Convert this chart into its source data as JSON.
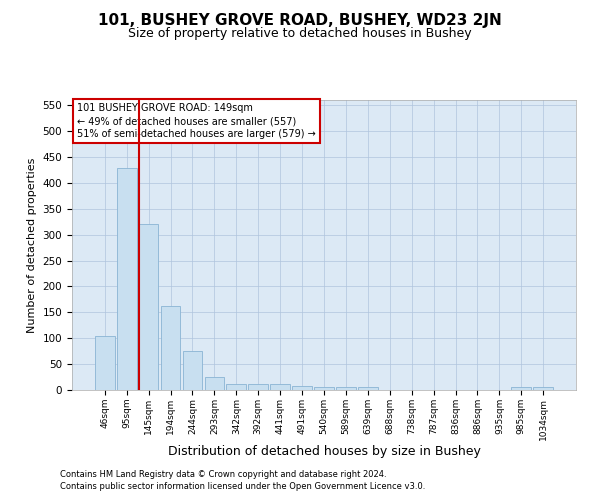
{
  "title": "101, BUSHEY GROVE ROAD, BUSHEY, WD23 2JN",
  "subtitle": "Size of property relative to detached houses in Bushey",
  "xlabel": "Distribution of detached houses by size in Bushey",
  "ylabel": "Number of detached properties",
  "footer_line1": "Contains HM Land Registry data © Crown copyright and database right 2024.",
  "footer_line2": "Contains public sector information licensed under the Open Government Licence v3.0.",
  "categories": [
    "46sqm",
    "95sqm",
    "145sqm",
    "194sqm",
    "244sqm",
    "293sqm",
    "342sqm",
    "392sqm",
    "441sqm",
    "491sqm",
    "540sqm",
    "589sqm",
    "639sqm",
    "688sqm",
    "738sqm",
    "787sqm",
    "836sqm",
    "886sqm",
    "935sqm",
    "985sqm",
    "1034sqm"
  ],
  "values": [
    104,
    428,
    320,
    163,
    76,
    26,
    11,
    12,
    11,
    7,
    5,
    6,
    5,
    0,
    0,
    0,
    0,
    0,
    0,
    5,
    5
  ],
  "bar_color": "#c8dff0",
  "bar_edge_color": "#8ab4d4",
  "vline_color": "#cc0000",
  "ylim": [
    0,
    560
  ],
  "yticks": [
    0,
    50,
    100,
    150,
    200,
    250,
    300,
    350,
    400,
    450,
    500,
    550
  ],
  "annotation_text": "101 BUSHEY GROVE ROAD: 149sqm\n← 49% of detached houses are smaller (557)\n51% of semi-detached houses are larger (579) →",
  "annotation_box_color": "#ffffff",
  "annotation_box_edge": "#cc0000",
  "title_fontsize": 11,
  "subtitle_fontsize": 9,
  "axis_bg_color": "#dce9f5",
  "background_color": "#ffffff",
  "grid_color": "#b0c4de",
  "footer_fontsize": 6,
  "ylabel_fontsize": 8,
  "xlabel_fontsize": 9
}
